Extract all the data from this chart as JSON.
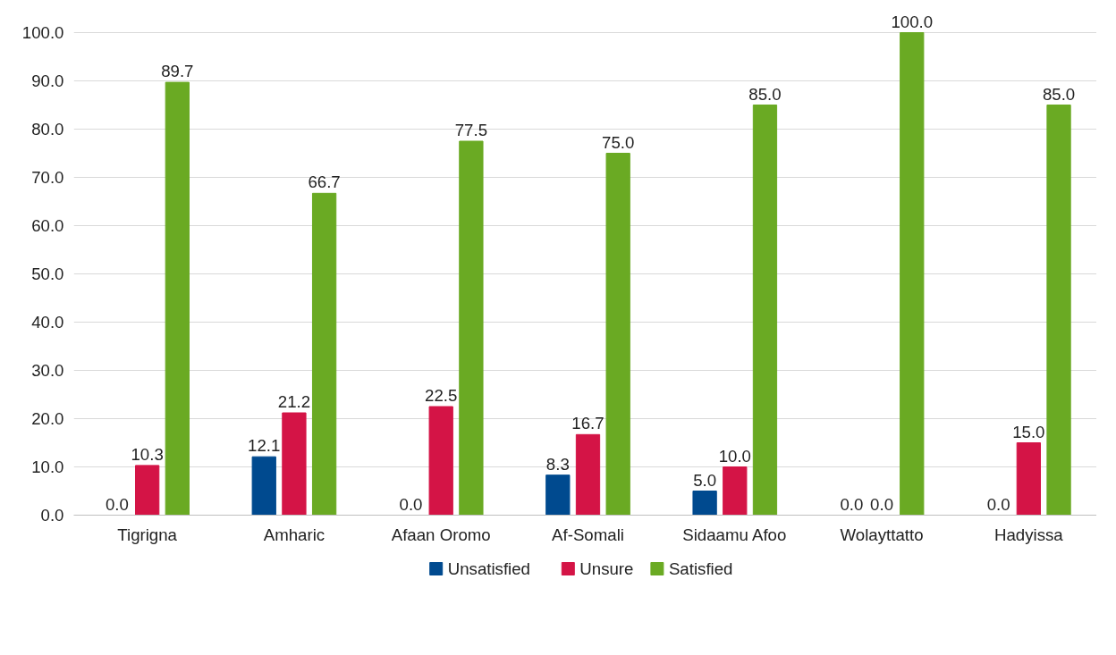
{
  "chart_data": {
    "type": "bar",
    "categories": [
      "Tigrigna",
      "Amharic",
      "Afaan Oromo",
      "Af-Somali",
      "Sidaamu Afoo",
      "Wolayttatto",
      "Hadyissa"
    ],
    "series": [
      {
        "name": "Unsatisfied",
        "color": "#004a8f",
        "values": [
          0.0,
          12.1,
          0.0,
          8.3,
          5.0,
          0.0,
          0.0
        ],
        "value_labels": [
          "0.0",
          "12.1",
          "0.0",
          "8.3",
          "5.0",
          "0.0",
          "0.0"
        ]
      },
      {
        "name": "Unsure",
        "color": "#d41446",
        "values": [
          10.3,
          21.2,
          22.5,
          16.7,
          10.0,
          0.0,
          15.0
        ],
        "value_labels": [
          "10.3",
          "21.2",
          "22.5",
          "16.7",
          "10.0",
          "0.0",
          "15.0"
        ]
      },
      {
        "name": "Satisfied",
        "color": "#6aaa23",
        "values": [
          89.7,
          66.7,
          77.5,
          75.0,
          85.0,
          100.0,
          85.0
        ],
        "value_labels": [
          "89.7",
          "66.7",
          "77.5",
          "75.0",
          "85.0",
          "100.0",
          "85.0"
        ]
      }
    ],
    "ylim": [
      0,
      100
    ],
    "yticks": [
      {
        "value": 0,
        "label": "0.0"
      },
      {
        "value": 10,
        "label": "10.0"
      },
      {
        "value": 20,
        "label": "20.0"
      },
      {
        "value": 30,
        "label": "30.0"
      },
      {
        "value": 40,
        "label": "40.0"
      },
      {
        "value": 50,
        "label": "50.0"
      },
      {
        "value": 60,
        "label": "60.0"
      },
      {
        "value": 70,
        "label": "70.0"
      },
      {
        "value": 80,
        "label": "80.0"
      },
      {
        "value": 90,
        "label": "90.0"
      },
      {
        "value": 100,
        "label": "100.0"
      }
    ],
    "grid": "y",
    "legend": "bottom"
  }
}
